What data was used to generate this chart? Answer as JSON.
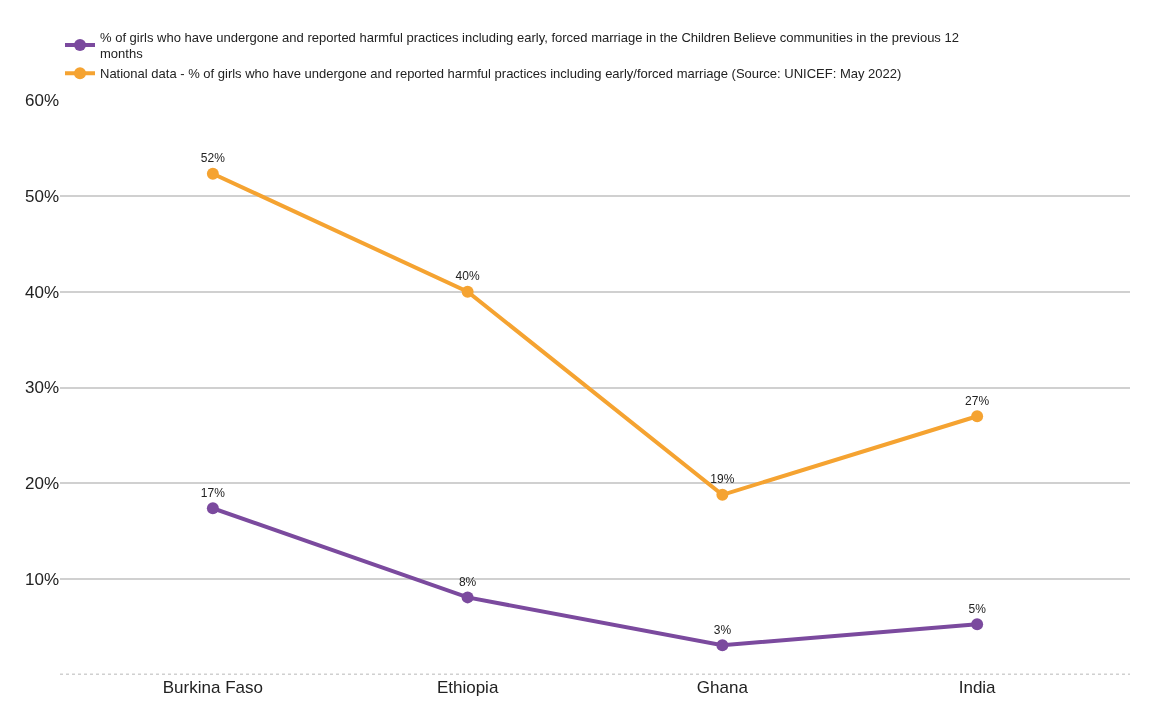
{
  "chart_data": {
    "type": "line",
    "categories": [
      "Burkina Faso",
      "Ethiopia",
      "Ghana",
      "India"
    ],
    "series": [
      {
        "name": "% of girls who have undergone and reported harmful practices including early, forced marriage in the Children Believe communities in the previous 12 months",
        "color": "#7b4a9e",
        "values": [
          17.4,
          8.1,
          3.1,
          5.3
        ],
        "value_labels": [
          "17%",
          "8%",
          "3%",
          "5%"
        ]
      },
      {
        "name": "National data - % of girls who have undergone and reported harmful practices including early/forced marriage (Source: UNICEF: May 2022)",
        "color": "#f5a331",
        "values": [
          52.3,
          40,
          18.8,
          27
        ],
        "value_labels": [
          "52%",
          "40%",
          "19%",
          "27%"
        ]
      }
    ],
    "ylim": [
      0,
      60
    ],
    "yticks": [
      {
        "value": 0,
        "label": null
      },
      {
        "value": 10,
        "label": "10%"
      },
      {
        "value": 20,
        "label": "20%"
      },
      {
        "value": 30,
        "label": "30%"
      },
      {
        "value": 40,
        "label": "40%"
      },
      {
        "value": 50,
        "label": "50%"
      },
      {
        "value": 60,
        "label": "60%"
      }
    ],
    "grid": "y",
    "legend": "top left",
    "marker": "circle",
    "line_style": "solid"
  }
}
